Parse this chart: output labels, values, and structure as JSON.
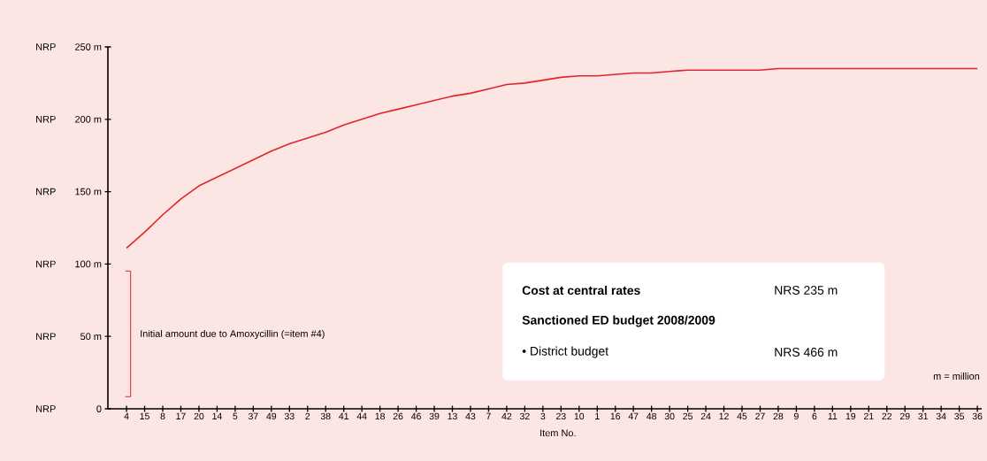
{
  "chart_data": {
    "type": "line",
    "xlabel": "Item No.",
    "categories": [
      "4",
      "15",
      "8",
      "17",
      "20",
      "14",
      "5",
      "37",
      "49",
      "33",
      "2",
      "38",
      "41",
      "44",
      "18",
      "26",
      "46",
      "39",
      "13",
      "43",
      "7",
      "42",
      "32",
      "3",
      "23",
      "10",
      "1",
      "16",
      "47",
      "48",
      "30",
      "25",
      "24",
      "12",
      "45",
      "27",
      "28",
      "9",
      "6",
      "11",
      "19",
      "21",
      "22",
      "29",
      "31",
      "34",
      "35",
      "36"
    ],
    "series": [
      {
        "color": "#e0242a",
        "values": [
          111,
          122,
          134,
          145,
          154,
          160,
          166,
          172,
          178,
          183,
          187,
          191,
          196,
          200,
          204,
          207,
          210,
          213,
          216,
          218,
          221,
          224,
          225,
          227,
          229,
          230,
          230,
          231,
          232,
          232,
          233,
          234,
          234,
          234,
          234,
          234,
          235,
          235,
          235,
          235,
          235,
          235,
          235,
          235,
          235,
          235,
          235,
          235
        ]
      }
    ],
    "ylim": [
      0,
      250
    ],
    "yticks": [
      0,
      {
        "value": 50,
        "label": "50 m"
      },
      {
        "value": 100,
        "label": "100 m"
      },
      {
        "value": 150,
        "label": "150 m"
      },
      {
        "value": 200,
        "label": "200 m"
      },
      {
        "value": 250,
        "label": "250 m"
      }
    ],
    "marker": "none",
    "line_style": "solid",
    "annotations": [
      "Initial amount due to Amoxycillin (=item #4)",
      "Cost at central rates",
      "NRS 235 m",
      "Sanctioned ED budget 2008/2009",
      "• District budget",
      "NRS 466 m",
      "m = million",
      "NRP",
      "NRP",
      "NRP",
      "NRP",
      "NRP",
      "NRP"
    ]
  }
}
